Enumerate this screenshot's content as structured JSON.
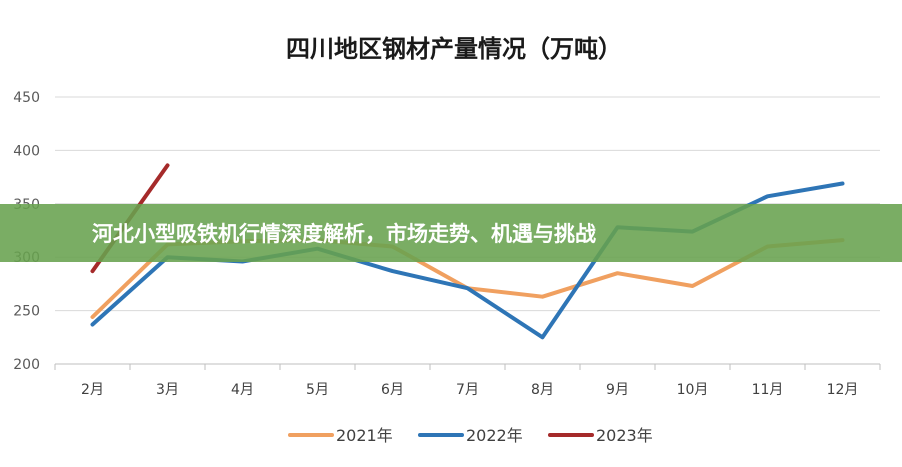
{
  "overlay": {
    "headline": "河北小型吸铁机行情深度解析，市场走势、机遇与挑战"
  },
  "chart_data": {
    "type": "line",
    "title": "四川地区钢材产量情况（万吨）",
    "xlabel": "",
    "ylabel": "",
    "categories": [
      "2月",
      "3月",
      "4月",
      "5月",
      "6月",
      "7月",
      "8月",
      "9月",
      "10月",
      "11月",
      "12月"
    ],
    "ylim": [
      200,
      450
    ],
    "yticks": [
      200,
      250,
      300,
      350,
      400,
      450
    ],
    "grid": true,
    "legend_position": "bottom",
    "series": [
      {
        "name": "2021年",
        "color": "#f0a060",
        "values": [
          244,
          312,
          315,
          316,
          310,
          271,
          263,
          285,
          273,
          310,
          316
        ]
      },
      {
        "name": "2022年",
        "color": "#2e75b6",
        "values": [
          237,
          300,
          296,
          308,
          287,
          271,
          225,
          328,
          324,
          357,
          369
        ]
      },
      {
        "name": "2023年",
        "color": "#a52a2a",
        "values": [
          287,
          386,
          null,
          null,
          null,
          null,
          null,
          null,
          null,
          null,
          null
        ]
      }
    ]
  }
}
